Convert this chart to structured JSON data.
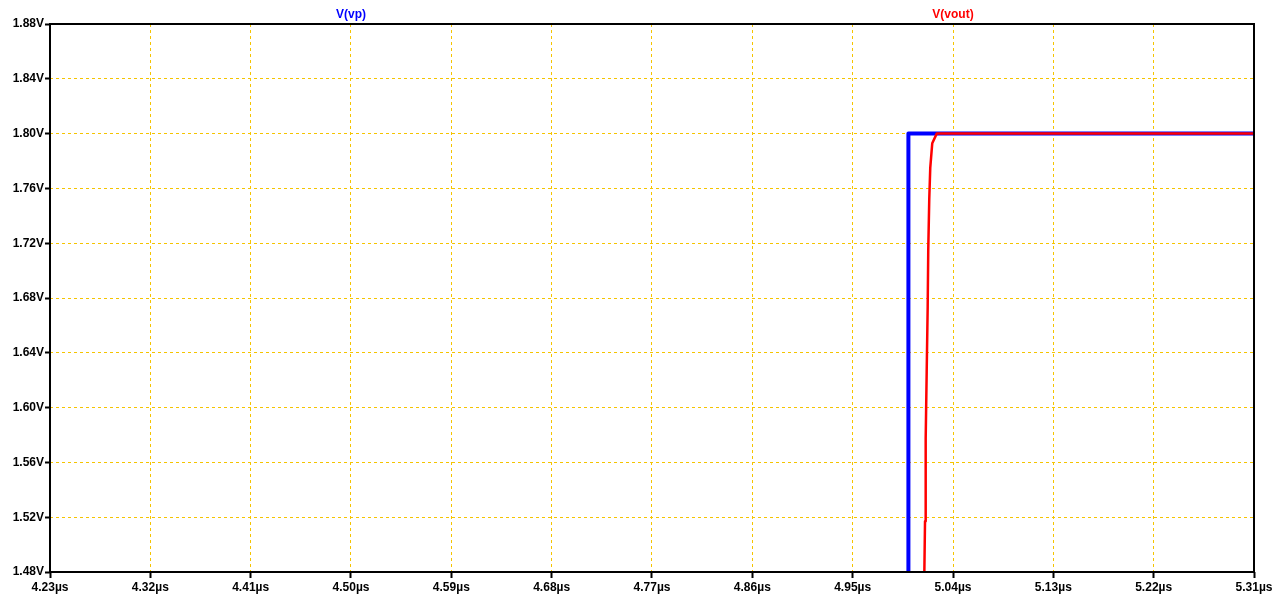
{
  "chart_data": {
    "type": "line",
    "xlim": [
      4.23,
      5.31
    ],
    "xticks": [
      {
        "value": 4.23,
        "label": "4.23µs"
      },
      {
        "value": 4.32,
        "label": "4.32µs"
      },
      {
        "value": 4.41,
        "label": "4.41µs"
      },
      {
        "value": 4.5,
        "label": "4.50µs"
      },
      {
        "value": 4.59,
        "label": "4.59µs"
      },
      {
        "value": 4.68,
        "label": "4.68µs"
      },
      {
        "value": 4.77,
        "label": "4.77µs"
      },
      {
        "value": 4.86,
        "label": "4.86µs"
      },
      {
        "value": 4.95,
        "label": "4.95µs"
      },
      {
        "value": 5.04,
        "label": "5.04µs"
      },
      {
        "value": 5.13,
        "label": "5.13µs"
      },
      {
        "value": 5.22,
        "label": "5.22µs"
      },
      {
        "value": 5.31,
        "label": "5.31µs"
      }
    ],
    "ylim": [
      1.48,
      1.88
    ],
    "yticks": [
      {
        "value": 1.48,
        "label": "1.48V"
      },
      {
        "value": 1.52,
        "label": "1.52V"
      },
      {
        "value": 1.56,
        "label": "1.56V"
      },
      {
        "value": 1.6,
        "label": "1.60V"
      },
      {
        "value": 1.64,
        "label": "1.64V"
      },
      {
        "value": 1.68,
        "label": "1.68V"
      },
      {
        "value": 1.72,
        "label": "1.72V"
      },
      {
        "value": 1.76,
        "label": "1.76V"
      },
      {
        "value": 1.8,
        "label": "1.80V"
      },
      {
        "value": 1.84,
        "label": "1.84V"
      },
      {
        "value": 1.88,
        "label": "1.88V"
      }
    ],
    "grid": true,
    "legend": "top",
    "marker": "none",
    "line_style": "solid",
    "series": [
      {
        "name": "V(vp)",
        "color": "#0000ff",
        "x": [
          5.0,
          5.0,
          5.31
        ],
        "values": [
          1.48,
          1.8,
          1.8
        ]
      },
      {
        "name": "V(vout)",
        "color": "#ff0000",
        "x": [
          5.0143,
          5.0149,
          5.0155,
          5.0164,
          5.0173,
          5.0178,
          5.0187,
          5.0196,
          5.0214,
          5.0254,
          5.31
        ],
        "values": [
          1.48,
          1.517,
          1.577,
          1.626,
          1.674,
          1.715,
          1.752,
          1.775,
          1.793,
          1.8,
          1.8
        ]
      }
    ]
  }
}
